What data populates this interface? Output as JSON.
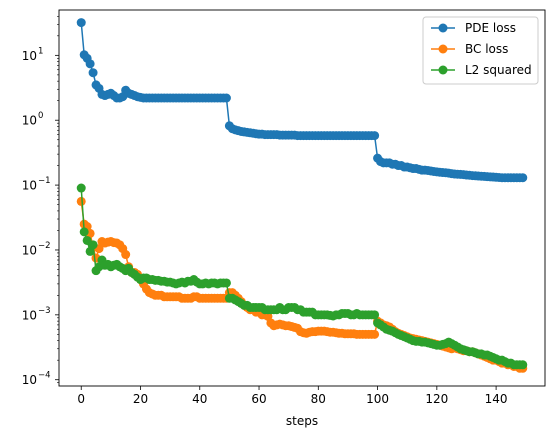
{
  "chart_data": {
    "type": "line",
    "title": "",
    "xlabel": "steps",
    "ylabel": "",
    "yscale": "log",
    "xlim": [
      -7.5,
      156.5
    ],
    "ylim": [
      8e-05,
      50
    ],
    "x_ticks": [
      0,
      20,
      40,
      60,
      80,
      100,
      120,
      140
    ],
    "y_ticks": [
      {
        "value": 0.0001,
        "base": "10",
        "exp": "−4"
      },
      {
        "value": 0.001,
        "base": "10",
        "exp": "−3"
      },
      {
        "value": 0.01,
        "base": "10",
        "exp": "−2"
      },
      {
        "value": 0.1,
        "base": "10",
        "exp": "−1"
      },
      {
        "value": 1,
        "base": "10",
        "exp": "0"
      },
      {
        "value": 10,
        "base": "10",
        "exp": "1"
      }
    ],
    "legend_position": "top-right",
    "series": [
      {
        "name": "PDE loss",
        "color": "#1f77b4",
        "x": [
          0,
          1,
          2,
          3,
          4,
          5,
          6,
          7,
          8,
          9,
          10,
          11,
          12,
          13,
          14,
          15,
          16,
          17,
          18,
          19,
          20,
          21,
          22,
          23,
          24,
          25,
          26,
          27,
          28,
          29,
          30,
          31,
          32,
          33,
          34,
          35,
          36,
          37,
          38,
          39,
          40,
          41,
          42,
          43,
          44,
          45,
          46,
          47,
          48,
          49,
          50,
          51,
          52,
          53,
          54,
          55,
          56,
          57,
          58,
          59,
          60,
          61,
          62,
          63,
          64,
          65,
          66,
          67,
          68,
          69,
          70,
          71,
          72,
          73,
          74,
          75,
          76,
          77,
          78,
          79,
          80,
          81,
          82,
          83,
          84,
          85,
          86,
          87,
          88,
          89,
          90,
          91,
          92,
          93,
          94,
          95,
          96,
          97,
          98,
          99,
          100,
          101,
          102,
          103,
          104,
          105,
          106,
          107,
          108,
          109,
          110,
          111,
          112,
          113,
          114,
          115,
          116,
          117,
          118,
          119,
          120,
          121,
          122,
          123,
          124,
          125,
          126,
          127,
          128,
          129,
          130,
          131,
          132,
          133,
          134,
          135,
          136,
          137,
          138,
          139,
          140,
          141,
          142,
          143,
          144,
          145,
          146,
          147,
          148,
          149
        ],
        "values": [
          32,
          10.2,
          9,
          7.4,
          5.4,
          3.5,
          3.1,
          2.5,
          2.4,
          2.5,
          2.6,
          2.4,
          2.2,
          2.2,
          2.3,
          2.9,
          2.6,
          2.5,
          2.4,
          2.3,
          2.25,
          2.2,
          2.2,
          2.2,
          2.2,
          2.2,
          2.2,
          2.2,
          2.2,
          2.2,
          2.2,
          2.2,
          2.2,
          2.2,
          2.2,
          2.2,
          2.2,
          2.2,
          2.2,
          2.2,
          2.2,
          2.2,
          2.2,
          2.2,
          2.2,
          2.2,
          2.2,
          2.2,
          2.2,
          2.2,
          0.82,
          0.74,
          0.71,
          0.69,
          0.67,
          0.66,
          0.65,
          0.64,
          0.63,
          0.62,
          0.61,
          0.61,
          0.6,
          0.6,
          0.6,
          0.6,
          0.6,
          0.59,
          0.59,
          0.59,
          0.59,
          0.59,
          0.59,
          0.58,
          0.58,
          0.58,
          0.58,
          0.58,
          0.58,
          0.58,
          0.58,
          0.58,
          0.58,
          0.58,
          0.58,
          0.58,
          0.58,
          0.58,
          0.58,
          0.58,
          0.58,
          0.58,
          0.58,
          0.58,
          0.58,
          0.58,
          0.58,
          0.58,
          0.58,
          0.58,
          0.26,
          0.23,
          0.22,
          0.22,
          0.22,
          0.21,
          0.21,
          0.2,
          0.2,
          0.19,
          0.19,
          0.185,
          0.18,
          0.18,
          0.175,
          0.17,
          0.17,
          0.168,
          0.165,
          0.162,
          0.16,
          0.158,
          0.156,
          0.155,
          0.153,
          0.15,
          0.148,
          0.147,
          0.146,
          0.145,
          0.143,
          0.142,
          0.14,
          0.139,
          0.138,
          0.137,
          0.136,
          0.135,
          0.134,
          0.133,
          0.132,
          0.131,
          0.13,
          0.13,
          0.13,
          0.13,
          0.13,
          0.13,
          0.13,
          0.13
        ]
      },
      {
        "name": "BC loss",
        "color": "#ff7f0e",
        "x": [
          0,
          1,
          2,
          3,
          4,
          5,
          6,
          7,
          8,
          9,
          10,
          11,
          12,
          13,
          14,
          15,
          16,
          17,
          18,
          19,
          20,
          21,
          22,
          23,
          24,
          25,
          26,
          27,
          28,
          29,
          30,
          31,
          32,
          33,
          34,
          35,
          36,
          37,
          38,
          39,
          40,
          41,
          42,
          43,
          44,
          45,
          46,
          47,
          48,
          49,
          50,
          51,
          52,
          53,
          54,
          55,
          56,
          57,
          58,
          59,
          60,
          61,
          62,
          63,
          64,
          65,
          66,
          67,
          68,
          69,
          70,
          71,
          72,
          73,
          74,
          75,
          76,
          77,
          78,
          79,
          80,
          81,
          82,
          83,
          84,
          85,
          86,
          87,
          88,
          89,
          90,
          91,
          92,
          93,
          94,
          95,
          96,
          97,
          98,
          99,
          100,
          101,
          102,
          103,
          104,
          105,
          106,
          107,
          108,
          109,
          110,
          111,
          112,
          113,
          114,
          115,
          116,
          117,
          118,
          119,
          120,
          121,
          122,
          123,
          124,
          125,
          126,
          127,
          128,
          129,
          130,
          131,
          132,
          133,
          134,
          135,
          136,
          137,
          138,
          139,
          140,
          141,
          142,
          143,
          144,
          145,
          146,
          147,
          148,
          149
        ],
        "values": [
          0.056,
          0.025,
          0.023,
          0.018,
          0.011,
          0.0075,
          0.0105,
          0.0135,
          0.0128,
          0.0132,
          0.0135,
          0.013,
          0.0128,
          0.012,
          0.0105,
          0.0085,
          0.0055,
          0.0045,
          0.0045,
          0.0042,
          0.0035,
          0.003,
          0.0025,
          0.0022,
          0.0021,
          0.002,
          0.002,
          0.002,
          0.0019,
          0.0019,
          0.0019,
          0.0019,
          0.0019,
          0.0019,
          0.0018,
          0.0018,
          0.0018,
          0.0018,
          0.0019,
          0.0019,
          0.0018,
          0.0018,
          0.0018,
          0.0018,
          0.0018,
          0.0018,
          0.0018,
          0.0018,
          0.0018,
          0.0018,
          0.0022,
          0.0022,
          0.002,
          0.0018,
          0.0016,
          0.0014,
          0.0013,
          0.0012,
          0.0012,
          0.0011,
          0.0011,
          0.001,
          0.001,
          0.00095,
          0.00075,
          0.00068,
          0.0007,
          0.00072,
          0.0007,
          0.00068,
          0.00068,
          0.00066,
          0.00064,
          0.00062,
          0.00055,
          0.00053,
          0.00052,
          0.00054,
          0.00055,
          0.00055,
          0.00056,
          0.00056,
          0.00056,
          0.00055,
          0.00054,
          0.00054,
          0.00053,
          0.00052,
          0.00052,
          0.00051,
          0.00051,
          0.00051,
          0.00051,
          0.0005,
          0.0005,
          0.0005,
          0.0005,
          0.0005,
          0.0005,
          0.0005,
          0.0008,
          0.00075,
          0.0007,
          0.00068,
          0.00065,
          0.0006,
          0.00055,
          0.00052,
          0.0005,
          0.00048,
          0.00046,
          0.00044,
          0.00043,
          0.00042,
          0.00041,
          0.0004,
          0.00039,
          0.00038,
          0.00037,
          0.00036,
          0.00035,
          0.00034,
          0.00033,
          0.00032,
          0.00031,
          0.0003,
          0.00031,
          0.0003,
          0.00029,
          0.00028,
          0.00028,
          0.00027,
          0.00027,
          0.00026,
          0.00025,
          0.00024,
          0.00023,
          0.00022,
          0.00021,
          0.0002,
          0.0002,
          0.00019,
          0.00018,
          0.00018,
          0.00017,
          0.00017,
          0.00016,
          0.00016,
          0.00015,
          0.00015
        ]
      },
      {
        "name": "L2 squared",
        "color": "#2ca02c",
        "x": [
          0,
          1,
          2,
          3,
          4,
          5,
          6,
          7,
          8,
          9,
          10,
          11,
          12,
          13,
          14,
          15,
          16,
          17,
          18,
          19,
          20,
          21,
          22,
          23,
          24,
          25,
          26,
          27,
          28,
          29,
          30,
          31,
          32,
          33,
          34,
          35,
          36,
          37,
          38,
          39,
          40,
          41,
          42,
          43,
          44,
          45,
          46,
          47,
          48,
          49,
          50,
          51,
          52,
          53,
          54,
          55,
          56,
          57,
          58,
          59,
          60,
          61,
          62,
          63,
          64,
          65,
          66,
          67,
          68,
          69,
          70,
          71,
          72,
          73,
          74,
          75,
          76,
          77,
          78,
          79,
          80,
          81,
          82,
          83,
          84,
          85,
          86,
          87,
          88,
          89,
          90,
          91,
          92,
          93,
          94,
          95,
          96,
          97,
          98,
          99,
          100,
          101,
          102,
          103,
          104,
          105,
          106,
          107,
          108,
          109,
          110,
          111,
          112,
          113,
          114,
          115,
          116,
          117,
          118,
          119,
          120,
          121,
          122,
          123,
          124,
          125,
          126,
          127,
          128,
          129,
          130,
          131,
          132,
          133,
          134,
          135,
          136,
          137,
          138,
          139,
          140,
          141,
          142,
          143,
          144,
          145,
          146,
          147,
          148,
          149
        ],
        "values": [
          0.09,
          0.019,
          0.014,
          0.0095,
          0.012,
          0.0048,
          0.0055,
          0.007,
          0.0058,
          0.006,
          0.0055,
          0.0058,
          0.006,
          0.0055,
          0.0052,
          0.0048,
          0.0052,
          0.0045,
          0.0042,
          0.0038,
          0.0035,
          0.0037,
          0.0037,
          0.0035,
          0.0035,
          0.0034,
          0.0034,
          0.0033,
          0.0033,
          0.0032,
          0.0032,
          0.0031,
          0.003,
          0.0031,
          0.0032,
          0.0031,
          0.0033,
          0.0033,
          0.0035,
          0.0032,
          0.003,
          0.003,
          0.0031,
          0.003,
          0.0031,
          0.0031,
          0.003,
          0.0031,
          0.0031,
          0.0031,
          0.0018,
          0.0018,
          0.0017,
          0.0016,
          0.0015,
          0.0014,
          0.0014,
          0.0013,
          0.0013,
          0.0013,
          0.0013,
          0.0013,
          0.0012,
          0.0012,
          0.0012,
          0.0012,
          0.0012,
          0.0013,
          0.0012,
          0.0012,
          0.0013,
          0.0013,
          0.0013,
          0.0012,
          0.0012,
          0.0011,
          0.0011,
          0.0011,
          0.0011,
          0.001,
          0.001,
          0.001,
          0.001,
          0.001,
          0.00098,
          0.00096,
          0.001,
          0.001,
          0.00105,
          0.00105,
          0.00105,
          0.001,
          0.001,
          0.00105,
          0.001,
          0.001,
          0.001,
          0.001,
          0.001,
          0.001,
          0.00075,
          0.0007,
          0.00065,
          0.0006,
          0.00058,
          0.00056,
          0.00053,
          0.0005,
          0.00048,
          0.00046,
          0.00044,
          0.00042,
          0.0004,
          0.00039,
          0.00039,
          0.00038,
          0.00038,
          0.00037,
          0.00036,
          0.00035,
          0.00034,
          0.00034,
          0.00035,
          0.00036,
          0.00038,
          0.00036,
          0.00034,
          0.00032,
          0.0003,
          0.00029,
          0.00028,
          0.00027,
          0.00027,
          0.00026,
          0.00025,
          0.00025,
          0.00024,
          0.00024,
          0.00023,
          0.00022,
          0.00021,
          0.0002,
          0.0002,
          0.00019,
          0.00018,
          0.00018,
          0.00017,
          0.00017,
          0.00017,
          0.00017
        ]
      }
    ]
  }
}
